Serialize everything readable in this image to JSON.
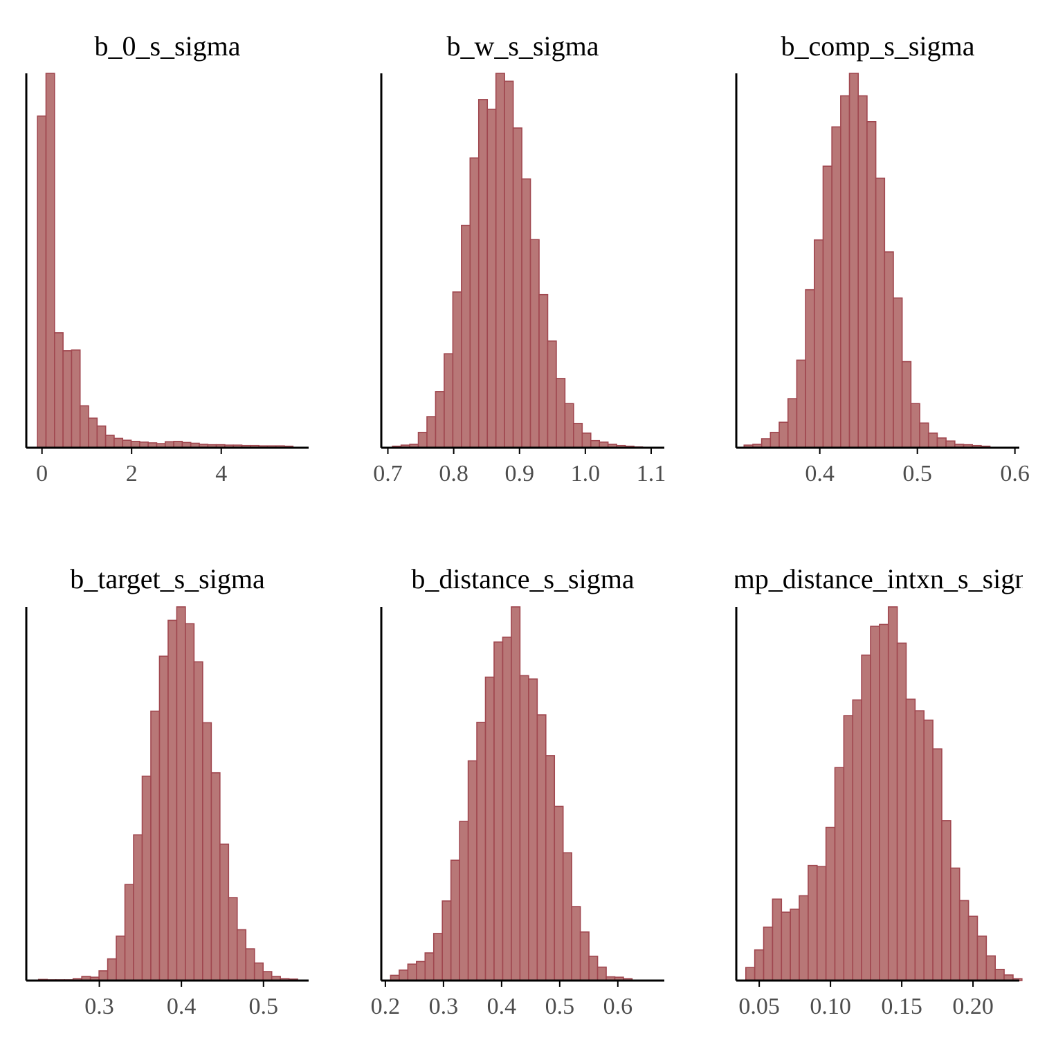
{
  "style": {
    "bar_fill": "#b87777",
    "bar_stroke": "#a0474f",
    "background": "#ffffff"
  },
  "chart_data": [
    {
      "type": "bar",
      "title": "b_0_s_sigma",
      "xlim": [
        -0.35,
        5.95
      ],
      "ylim": [
        0,
        1
      ],
      "xticks": [
        0,
        2,
        4
      ],
      "xtick_labels": [
        "0",
        "2",
        "4"
      ],
      "bin_start": -0.1,
      "bin_width": 0.19,
      "values": [
        0.886,
        1.0,
        0.307,
        0.259,
        0.261,
        0.112,
        0.079,
        0.058,
        0.033,
        0.025,
        0.02,
        0.017,
        0.015,
        0.013,
        0.011,
        0.016,
        0.017,
        0.014,
        0.012,
        0.009,
        0.008,
        0.008,
        0.007,
        0.007,
        0.006,
        0.006,
        0.005,
        0.005,
        0.005,
        0.004
      ]
    },
    {
      "type": "bar",
      "title": "b_w_s_sigma",
      "xlim": [
        0.69,
        1.12
      ],
      "ylim": [
        0,
        1
      ],
      "xticks": [
        0.7,
        0.8,
        0.9,
        1.0,
        1.1
      ],
      "xtick_labels": [
        "0.7",
        "0.8",
        "0.9",
        "1.0",
        "1.1"
      ],
      "bin_start": 0.707,
      "bin_width": 0.0131,
      "values": [
        0.004,
        0.007,
        0.009,
        0.041,
        0.083,
        0.15,
        0.251,
        0.416,
        0.594,
        0.774,
        0.93,
        0.904,
        1.0,
        0.979,
        0.854,
        0.718,
        0.556,
        0.409,
        0.285,
        0.185,
        0.118,
        0.065,
        0.039,
        0.019,
        0.015,
        0.009,
        0.006,
        0.004,
        0.002,
        0.001
      ]
    },
    {
      "type": "bar",
      "title": "b_comp_s_sigma",
      "xlim": [
        0.3144,
        0.6045
      ],
      "ylim": [
        0,
        1
      ],
      "xticks": [
        0.4,
        0.5,
        0.6
      ],
      "xtick_labels": [
        "0.4",
        "0.5",
        "0.6"
      ],
      "bin_start": 0.3224,
      "bin_width": 0.009,
      "values": [
        0.007,
        0.009,
        0.024,
        0.041,
        0.068,
        0.131,
        0.234,
        0.422,
        0.555,
        0.752,
        0.857,
        0.94,
        1.0,
        0.94,
        0.871,
        0.72,
        0.523,
        0.4,
        0.23,
        0.118,
        0.066,
        0.039,
        0.026,
        0.018,
        0.009,
        0.008,
        0.006,
        0.004
      ]
    },
    {
      "type": "bar",
      "title": "b_target_s_sigma",
      "xlim": [
        0.211,
        0.555
      ],
      "ylim": [
        0,
        1
      ],
      "xticks": [
        0.3,
        0.4,
        0.5
      ],
      "xtick_labels": [
        "0.3",
        "0.4",
        "0.5"
      ],
      "bin_start": 0.226,
      "bin_width": 0.01052,
      "values": [
        0.003,
        0.002,
        0.002,
        0.002,
        0.005,
        0.011,
        0.009,
        0.026,
        0.058,
        0.119,
        0.257,
        0.39,
        0.547,
        0.721,
        0.868,
        0.964,
        1.0,
        0.955,
        0.853,
        0.69,
        0.556,
        0.365,
        0.222,
        0.136,
        0.085,
        0.047,
        0.024,
        0.011,
        0.005,
        0.004
      ]
    },
    {
      "type": "bar",
      "title": "b_distance_s_sigma",
      "xlim": [
        0.193,
        0.68
      ],
      "ylim": [
        0,
        1
      ],
      "xticks": [
        0.2,
        0.3,
        0.4,
        0.5,
        0.6
      ],
      "xtick_labels": [
        "0.2",
        "0.3",
        "0.4",
        "0.5",
        "0.6"
      ],
      "bin_start": 0.209,
      "bin_width": 0.01484,
      "values": [
        0.014,
        0.028,
        0.044,
        0.051,
        0.074,
        0.126,
        0.213,
        0.322,
        0.426,
        0.588,
        0.691,
        0.812,
        0.906,
        0.919,
        1.0,
        0.816,
        0.807,
        0.711,
        0.602,
        0.466,
        0.342,
        0.198,
        0.13,
        0.065,
        0.036,
        0.01,
        0.009,
        0.005
      ]
    },
    {
      "type": "bar",
      "title": "comp_distance_intxn_s_sigma",
      "title_visible": "comp_distance_intxn_s",
      "xlim": [
        0.0339,
        0.2325
      ],
      "ylim": [
        0,
        1
      ],
      "xticks": [
        0.05,
        0.1,
        0.15,
        0.2
      ],
      "xtick_labels": [
        "0.05",
        "0.10",
        "0.15",
        "0.20"
      ],
      "bin_start": 0.0406,
      "bin_width": 0.00625,
      "values": [
        0.035,
        0.082,
        0.143,
        0.218,
        0.183,
        0.191,
        0.227,
        0.308,
        0.305,
        0.41,
        0.57,
        0.709,
        0.751,
        0.871,
        0.948,
        0.953,
        1.0,
        0.903,
        0.753,
        0.722,
        0.697,
        0.62,
        0.428,
        0.301,
        0.214,
        0.172,
        0.119,
        0.066,
        0.03,
        0.015,
        0.005
      ]
    }
  ]
}
